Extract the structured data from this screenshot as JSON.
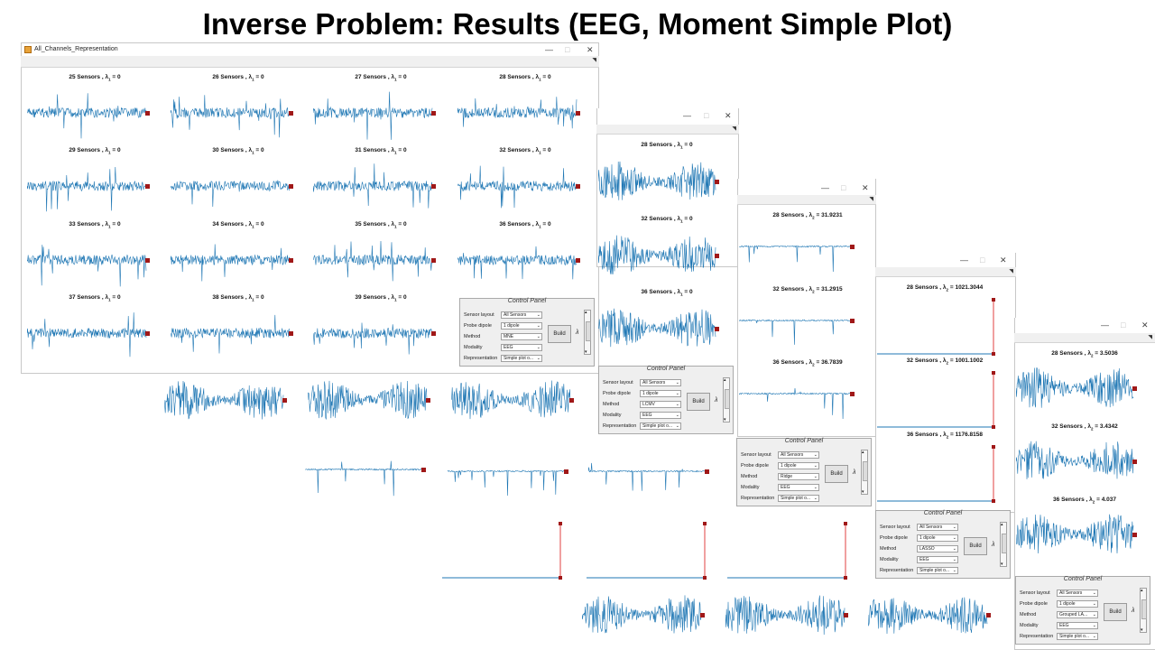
{
  "slide": {
    "title": "Inverse Problem: Results (EEG, Moment Simple Plot)"
  },
  "window_main": {
    "title": "All_Channels_Representation"
  },
  "window_controls": {
    "minimize": "—",
    "maximize": "□",
    "close": "✕"
  },
  "lambda_prefix": "λ",
  "captions": {
    "mne": [
      {
        "sensors": "25 Sensors ,",
        "sub": "1",
        "val": "= 0"
      },
      {
        "sensors": "26 Sensors ,",
        "sub": "1",
        "val": "= 0"
      },
      {
        "sensors": "27 Sensors ,",
        "sub": "1",
        "val": "= 0"
      },
      {
        "sensors": "28 Sensors ,",
        "sub": "1",
        "val": "= 0"
      },
      {
        "sensors": "29 Sensors ,",
        "sub": "1",
        "val": "= 0"
      },
      {
        "sensors": "30 Sensors ,",
        "sub": "1",
        "val": "= 0"
      },
      {
        "sensors": "31 Sensors ,",
        "sub": "1",
        "val": "= 0"
      },
      {
        "sensors": "32 Sensors ,",
        "sub": "1",
        "val": "= 0"
      },
      {
        "sensors": "33 Sensors ,",
        "sub": "1",
        "val": "= 0"
      },
      {
        "sensors": "34 Sensors ,",
        "sub": "1",
        "val": "= 0"
      },
      {
        "sensors": "35 Sensors ,",
        "sub": "1",
        "val": "= 0"
      },
      {
        "sensors": "36 Sensors ,",
        "sub": "1",
        "val": "= 0"
      },
      {
        "sensors": "37 Sensors ,",
        "sub": "1",
        "val": "= 0"
      },
      {
        "sensors": "38 Sensors ,",
        "sub": "1",
        "val": "= 0"
      },
      {
        "sensors": "39 Sensors ,",
        "sub": "1",
        "val": "= 0"
      }
    ],
    "lcmv": [
      {
        "sensors": "28 Sensors ,",
        "sub": "1",
        "val": "= 0"
      },
      {
        "sensors": "32 Sensors ,",
        "sub": "1",
        "val": "= 0"
      },
      {
        "sensors": "36 Sensors ,",
        "sub": "1",
        "val": "= 0"
      }
    ],
    "ridge": [
      {
        "sensors": "28 Sensors ,",
        "sub": "2",
        "val": "= 31.9231"
      },
      {
        "sensors": "32 Sensors ,",
        "sub": "2",
        "val": "= 31.2915"
      },
      {
        "sensors": "36 Sensors ,",
        "sub": "2",
        "val": "= 36.7839"
      }
    ],
    "lasso": [
      {
        "sensors": "28 Sensors ,",
        "sub": "2",
        "val": "= 1021.3044"
      },
      {
        "sensors": "32 Sensors ,",
        "sub": "2",
        "val": "= 1001.1002"
      },
      {
        "sensors": "36 Sensors ,",
        "sub": "2",
        "val": "= 1176.8158"
      }
    ],
    "grouped": [
      {
        "sensors": "28 Sensors ,",
        "sub": "2",
        "val": "= 3.5036"
      },
      {
        "sensors": "32 Sensors ,",
        "sub": "2",
        "val": "= 3.4342"
      },
      {
        "sensors": "36 Sensors ,",
        "sub": "2",
        "val": "= 4.037"
      }
    ]
  },
  "panel_labels": {
    "title": "Control Panel",
    "sensor_layout": "Sensor layout",
    "probe_dipole": "Probe dipole",
    "method": "Method",
    "modality": "Modality",
    "representation": "Representation",
    "build": "Build",
    "lambda": "λ"
  },
  "panels": [
    {
      "sensor_layout": "All Sensors",
      "probe_dipole": "1 dipole",
      "method": "MNE",
      "modality": "EEG",
      "representation": "Simple plot o..."
    },
    {
      "sensor_layout": "All Sensors",
      "probe_dipole": "1 dipole",
      "method": "LCMV",
      "modality": "EEG",
      "representation": "Simple plot o..."
    },
    {
      "sensor_layout": "All Sensors",
      "probe_dipole": "1 dipole",
      "method": "Ridge",
      "modality": "EEG",
      "representation": "Simple plot o..."
    },
    {
      "sensor_layout": "All Sensors",
      "probe_dipole": "1 dipole",
      "method": "LASSO",
      "modality": "EEG",
      "representation": "Simple plot o..."
    },
    {
      "sensor_layout": "All Sensors",
      "probe_dipole": "1 dipole",
      "method": "Grouped LA...",
      "modality": "EEG",
      "representation": "Simple plot o..."
    }
  ],
  "colors": {
    "signal": "#1f77b4",
    "marker": "#a01818",
    "spike_line": "#e04040"
  }
}
